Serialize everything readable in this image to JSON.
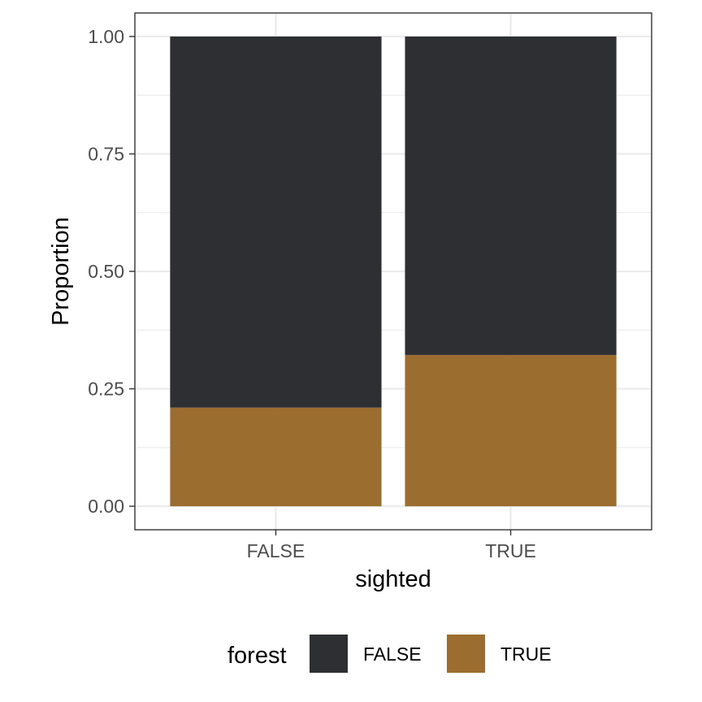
{
  "chart_data": {
    "type": "bar",
    "stacked": true,
    "categories": [
      "FALSE",
      "TRUE"
    ],
    "series": [
      {
        "name": "FALSE",
        "color": "#2e2f33",
        "values": [
          0.79,
          0.678
        ]
      },
      {
        "name": "TRUE",
        "color": "#9b6d2e",
        "values": [
          0.21,
          0.322
        ]
      }
    ],
    "xlabel": "sighted",
    "ylabel": "Proportion",
    "ylim": [
      -0.05,
      1.05
    ],
    "yticks": [
      0,
      0.25,
      0.5,
      0.75,
      1
    ],
    "ytick_labels": [
      "0.00",
      "0.25",
      "0.50",
      "0.75",
      "1.00"
    ],
    "grid": true,
    "legend": {
      "title": "forest",
      "placement": "bottom",
      "entries": [
        "FALSE",
        "TRUE"
      ]
    }
  }
}
